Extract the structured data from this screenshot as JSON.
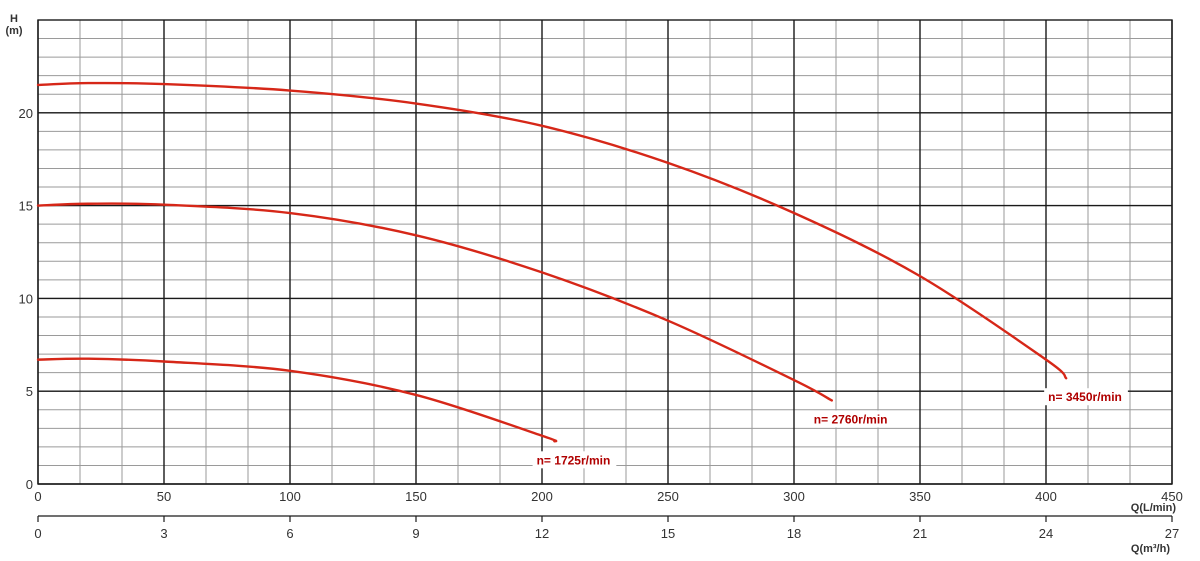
{
  "chart_data": {
    "type": "line",
    "title": "",
    "ylabel_line1": "H",
    "ylabel_line2": "(m)",
    "xlabel": "Q(L/min)",
    "x2label": "Q(m³/h)",
    "xlim": [
      0,
      450
    ],
    "ylim": [
      0,
      25
    ],
    "x2lim": [
      0,
      27
    ],
    "grid": true,
    "legend": "none",
    "x_ticks": [
      0,
      50,
      100,
      150,
      200,
      250,
      300,
      350,
      400,
      450
    ],
    "y_ticks": [
      0,
      5,
      10,
      15,
      20
    ],
    "x2_ticks": [
      0,
      3,
      6,
      9,
      12,
      15,
      18,
      21,
      24,
      27
    ],
    "series": [
      {
        "name": "n= 3450r/min",
        "color": "#d62718",
        "x": [
          0,
          20,
          50,
          100,
          150,
          200,
          250,
          300,
          350,
          400,
          408
        ],
        "y": [
          21.5,
          21.6,
          21.55,
          21.2,
          20.5,
          19.3,
          17.3,
          14.6,
          11.2,
          6.7,
          5.7
        ]
      },
      {
        "name": "n= 2760r/min",
        "color": "#d62718",
        "x": [
          0,
          20,
          50,
          100,
          150,
          200,
          250,
          300,
          315
        ],
        "y": [
          15.0,
          15.1,
          15.05,
          14.6,
          13.4,
          11.4,
          8.8,
          5.6,
          4.5
        ]
      },
      {
        "name": "n= 1725r/min",
        "color": "#d62718",
        "x": [
          0,
          20,
          50,
          100,
          150,
          200,
          205
        ],
        "y": [
          6.7,
          6.75,
          6.6,
          6.1,
          4.8,
          2.6,
          2.3
        ]
      }
    ]
  }
}
